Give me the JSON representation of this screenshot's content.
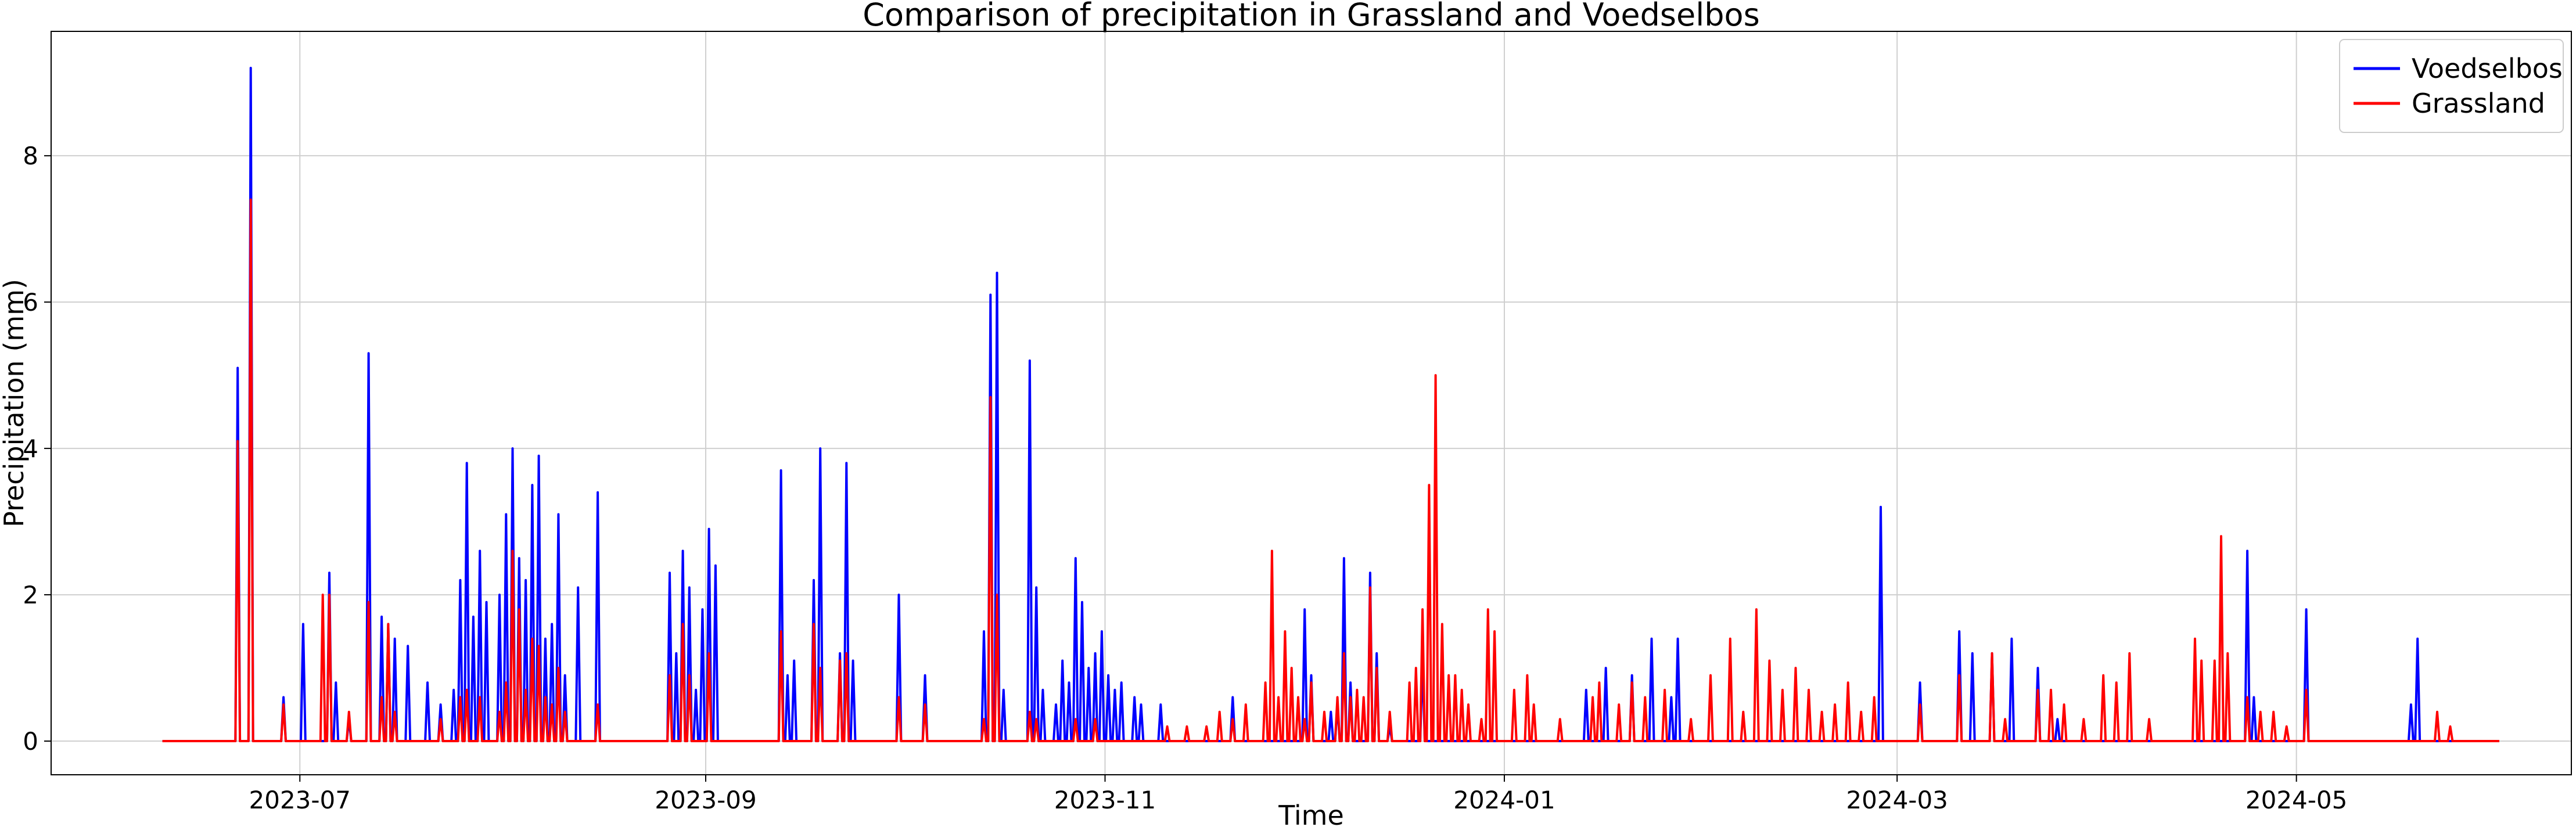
{
  "chart_data": {
    "type": "line",
    "title": "Comparison of precipitation in Grassland and Voedselbos",
    "xlabel": "Time",
    "ylabel": "Precipitation (mm)",
    "x_range": [
      "2023-05-24",
      "2024-06-12"
    ],
    "ylim": [
      -0.46,
      9.7
    ],
    "y_ticks": [
      0,
      2,
      4,
      6,
      8
    ],
    "x_ticks": [
      {
        "date": "2023-07-01",
        "label": "2023-07"
      },
      {
        "date": "2023-09-01",
        "label": "2023-09"
      },
      {
        "date": "2023-11-01",
        "label": "2023-11"
      },
      {
        "date": "2024-01-01",
        "label": "2024-01"
      },
      {
        "date": "2024-03-01",
        "label": "2024-03"
      },
      {
        "date": "2024-05-01",
        "label": "2024-05"
      }
    ],
    "grid": true,
    "legend_position": "top-right",
    "data_start": "2023-06-10",
    "data_end": "2024-06-01",
    "series": [
      {
        "name": "Voedselbos",
        "color": "#0000ff",
        "spikes": [
          [
            "2023-06-21",
            5.1
          ],
          [
            "2023-06-23",
            9.2
          ],
          [
            "2023-06-28",
            0.6
          ],
          [
            "2023-07-01",
            1.6
          ],
          [
            "2023-07-05",
            2.3
          ],
          [
            "2023-07-06",
            0.8
          ],
          [
            "2023-07-08",
            0.3
          ],
          [
            "2023-07-11",
            5.3
          ],
          [
            "2023-07-13",
            1.7
          ],
          [
            "2023-07-14",
            1.6
          ],
          [
            "2023-07-15",
            1.4
          ],
          [
            "2023-07-17",
            1.3
          ],
          [
            "2023-07-20",
            0.8
          ],
          [
            "2023-07-22",
            0.5
          ],
          [
            "2023-07-24",
            0.7
          ],
          [
            "2023-07-25",
            2.2
          ],
          [
            "2023-07-26",
            3.8
          ],
          [
            "2023-07-27",
            1.7
          ],
          [
            "2023-07-28",
            2.6
          ],
          [
            "2023-07-29",
            1.9
          ],
          [
            "2023-07-31",
            2.0
          ],
          [
            "2023-08-01",
            3.1
          ],
          [
            "2023-08-02",
            4.0
          ],
          [
            "2023-08-03",
            2.5
          ],
          [
            "2023-08-04",
            2.2
          ],
          [
            "2023-08-05",
            3.5
          ],
          [
            "2023-08-06",
            3.9
          ],
          [
            "2023-08-07",
            1.4
          ],
          [
            "2023-08-08",
            1.6
          ],
          [
            "2023-08-09",
            3.1
          ],
          [
            "2023-08-10",
            0.9
          ],
          [
            "2023-08-12",
            2.1
          ],
          [
            "2023-08-15",
            3.4
          ],
          [
            "2023-08-26",
            2.3
          ],
          [
            "2023-08-27",
            1.2
          ],
          [
            "2023-08-28",
            2.6
          ],
          [
            "2023-08-29",
            2.1
          ],
          [
            "2023-08-30",
            0.7
          ],
          [
            "2023-08-31",
            1.8
          ],
          [
            "2023-09-01",
            2.9
          ],
          [
            "2023-09-02",
            2.4
          ],
          [
            "2023-09-12",
            3.7
          ],
          [
            "2023-09-13",
            0.9
          ],
          [
            "2023-09-14",
            1.1
          ],
          [
            "2023-09-17",
            2.2
          ],
          [
            "2023-09-18",
            4.0
          ],
          [
            "2023-09-21",
            1.2
          ],
          [
            "2023-09-22",
            3.8
          ],
          [
            "2023-09-23",
            1.1
          ],
          [
            "2023-09-30",
            2.0
          ],
          [
            "2023-10-04",
            0.9
          ],
          [
            "2023-10-13",
            1.5
          ],
          [
            "2023-10-14",
            6.1
          ],
          [
            "2023-10-15",
            6.4
          ],
          [
            "2023-10-16",
            0.7
          ],
          [
            "2023-10-20",
            5.2
          ],
          [
            "2023-10-21",
            2.1
          ],
          [
            "2023-10-22",
            0.7
          ],
          [
            "2023-10-24",
            0.5
          ],
          [
            "2023-10-25",
            1.1
          ],
          [
            "2023-10-26",
            0.8
          ],
          [
            "2023-10-27",
            2.5
          ],
          [
            "2023-10-28",
            1.9
          ],
          [
            "2023-10-29",
            1.0
          ],
          [
            "2023-10-30",
            1.2
          ],
          [
            "2023-10-31",
            1.5
          ],
          [
            "2023-11-01",
            0.9
          ],
          [
            "2023-11-02",
            0.7
          ],
          [
            "2023-11-03",
            0.8
          ],
          [
            "2023-11-05",
            0.6
          ],
          [
            "2023-11-06",
            0.5
          ],
          [
            "2023-11-09",
            0.5
          ],
          [
            "2023-11-20",
            0.6
          ],
          [
            "2023-12-01",
            1.8
          ],
          [
            "2023-12-02",
            0.9
          ],
          [
            "2023-12-05",
            0.4
          ],
          [
            "2023-12-06",
            0.5
          ],
          [
            "2023-12-07",
            2.5
          ],
          [
            "2023-12-08",
            0.8
          ],
          [
            "2023-12-11",
            2.3
          ],
          [
            "2023-12-12",
            1.2
          ],
          [
            "2023-12-14",
            0.2
          ],
          [
            "2023-12-19",
            1.1
          ],
          [
            "2024-01-13",
            0.7
          ],
          [
            "2024-01-16",
            1.0
          ],
          [
            "2024-01-20",
            0.9
          ],
          [
            "2024-01-23",
            1.4
          ],
          [
            "2024-01-26",
            0.6
          ],
          [
            "2024-01-27",
            1.4
          ],
          [
            "2024-02-27",
            3.2
          ],
          [
            "2024-03-04",
            0.8
          ],
          [
            "2024-03-10",
            1.5
          ],
          [
            "2024-03-12",
            1.2
          ],
          [
            "2024-03-15",
            1.2
          ],
          [
            "2024-03-18",
            1.4
          ],
          [
            "2024-03-22",
            1.0
          ],
          [
            "2024-03-25",
            0.3
          ],
          [
            "2024-04-23",
            2.6
          ],
          [
            "2024-04-24",
            0.6
          ],
          [
            "2024-05-02",
            1.8
          ],
          [
            "2024-05-18",
            0.5
          ],
          [
            "2024-05-19",
            1.4
          ]
        ]
      },
      {
        "name": "Grassland",
        "color": "#ff0000",
        "spikes": [
          [
            "2023-06-21",
            4.1
          ],
          [
            "2023-06-23",
            7.4
          ],
          [
            "2023-06-28",
            0.5
          ],
          [
            "2023-07-04",
            2.0
          ],
          [
            "2023-07-05",
            2.0
          ],
          [
            "2023-07-08",
            0.4
          ],
          [
            "2023-07-11",
            1.9
          ],
          [
            "2023-07-13",
            0.6
          ],
          [
            "2023-07-14",
            1.6
          ],
          [
            "2023-07-15",
            0.4
          ],
          [
            "2023-07-22",
            0.3
          ],
          [
            "2023-07-25",
            0.6
          ],
          [
            "2023-07-26",
            0.7
          ],
          [
            "2023-07-28",
            0.6
          ],
          [
            "2023-07-31",
            0.4
          ],
          [
            "2023-08-01",
            0.8
          ],
          [
            "2023-08-02",
            2.6
          ],
          [
            "2023-08-03",
            1.8
          ],
          [
            "2023-08-04",
            0.7
          ],
          [
            "2023-08-05",
            1.4
          ],
          [
            "2023-08-06",
            1.3
          ],
          [
            "2023-08-07",
            0.6
          ],
          [
            "2023-08-08",
            0.5
          ],
          [
            "2023-08-09",
            1.0
          ],
          [
            "2023-08-10",
            0.4
          ],
          [
            "2023-08-15",
            0.5
          ],
          [
            "2023-08-26",
            0.9
          ],
          [
            "2023-08-28",
            1.6
          ],
          [
            "2023-08-29",
            0.9
          ],
          [
            "2023-09-01",
            1.2
          ],
          [
            "2023-09-12",
            1.5
          ],
          [
            "2023-09-17",
            1.6
          ],
          [
            "2023-09-18",
            1.0
          ],
          [
            "2023-09-21",
            1.1
          ],
          [
            "2023-09-22",
            1.2
          ],
          [
            "2023-09-30",
            0.6
          ],
          [
            "2023-10-04",
            0.5
          ],
          [
            "2023-10-13",
            0.3
          ],
          [
            "2023-10-14",
            4.7
          ],
          [
            "2023-10-15",
            2.0
          ],
          [
            "2023-10-20",
            0.4
          ],
          [
            "2023-10-21",
            0.3
          ],
          [
            "2023-10-27",
            0.3
          ],
          [
            "2023-10-30",
            0.3
          ],
          [
            "2023-11-10",
            0.2
          ],
          [
            "2023-11-13",
            0.2
          ],
          [
            "2023-11-16",
            0.2
          ],
          [
            "2023-11-18",
            0.4
          ],
          [
            "2023-11-20",
            0.3
          ],
          [
            "2023-11-22",
            0.5
          ],
          [
            "2023-11-25",
            0.8
          ],
          [
            "2023-11-26",
            2.6
          ],
          [
            "2023-11-27",
            0.6
          ],
          [
            "2023-11-28",
            1.5
          ],
          [
            "2023-11-29",
            1.0
          ],
          [
            "2023-11-30",
            0.6
          ],
          [
            "2023-12-01",
            0.3
          ],
          [
            "2023-12-02",
            0.8
          ],
          [
            "2023-12-04",
            0.4
          ],
          [
            "2023-12-06",
            0.6
          ],
          [
            "2023-12-07",
            1.2
          ],
          [
            "2023-12-08",
            0.6
          ],
          [
            "2023-12-09",
            0.7
          ],
          [
            "2023-12-10",
            0.6
          ],
          [
            "2023-12-11",
            2.1
          ],
          [
            "2023-12-12",
            1.0
          ],
          [
            "2023-12-14",
            0.4
          ],
          [
            "2023-12-17",
            0.8
          ],
          [
            "2023-12-18",
            1.0
          ],
          [
            "2023-12-19",
            1.8
          ],
          [
            "2023-12-20",
            3.5
          ],
          [
            "2023-12-21",
            5.0
          ],
          [
            "2023-12-22",
            1.6
          ],
          [
            "2023-12-23",
            0.9
          ],
          [
            "2023-12-24",
            0.9
          ],
          [
            "2023-12-25",
            0.7
          ],
          [
            "2023-12-26",
            0.5
          ],
          [
            "2023-12-28",
            0.3
          ],
          [
            "2023-12-29",
            1.8
          ],
          [
            "2023-12-30",
            1.5
          ],
          [
            "2024-01-02",
            0.7
          ],
          [
            "2024-01-04",
            0.9
          ],
          [
            "2024-01-05",
            0.5
          ],
          [
            "2024-01-09",
            0.3
          ],
          [
            "2024-01-14",
            0.6
          ],
          [
            "2024-01-15",
            0.8
          ],
          [
            "2024-01-18",
            0.5
          ],
          [
            "2024-01-20",
            0.8
          ],
          [
            "2024-01-22",
            0.6
          ],
          [
            "2024-01-25",
            0.7
          ],
          [
            "2024-01-29",
            0.3
          ],
          [
            "2024-02-01",
            0.9
          ],
          [
            "2024-02-04",
            1.4
          ],
          [
            "2024-02-06",
            0.4
          ],
          [
            "2024-02-08",
            1.8
          ],
          [
            "2024-02-10",
            1.1
          ],
          [
            "2024-02-12",
            0.7
          ],
          [
            "2024-02-14",
            1.0
          ],
          [
            "2024-02-16",
            0.7
          ],
          [
            "2024-02-18",
            0.4
          ],
          [
            "2024-02-20",
            0.5
          ],
          [
            "2024-02-22",
            0.8
          ],
          [
            "2024-02-24",
            0.4
          ],
          [
            "2024-02-26",
            0.6
          ],
          [
            "2024-03-04",
            0.5
          ],
          [
            "2024-03-10",
            0.9
          ],
          [
            "2024-03-15",
            1.2
          ],
          [
            "2024-03-17",
            0.3
          ],
          [
            "2024-03-22",
            0.7
          ],
          [
            "2024-03-24",
            0.7
          ],
          [
            "2024-03-26",
            0.5
          ],
          [
            "2024-03-29",
            0.3
          ],
          [
            "2024-04-01",
            0.9
          ],
          [
            "2024-04-03",
            0.8
          ],
          [
            "2024-04-05",
            1.2
          ],
          [
            "2024-04-08",
            0.3
          ],
          [
            "2024-04-15",
            1.4
          ],
          [
            "2024-04-16",
            1.1
          ],
          [
            "2024-04-18",
            1.1
          ],
          [
            "2024-04-19",
            2.8
          ],
          [
            "2024-04-20",
            1.2
          ],
          [
            "2024-04-23",
            0.6
          ],
          [
            "2024-04-25",
            0.4
          ],
          [
            "2024-04-27",
            0.4
          ],
          [
            "2024-04-29",
            0.2
          ],
          [
            "2024-05-02",
            0.7
          ],
          [
            "2024-05-22",
            0.4
          ],
          [
            "2024-05-24",
            0.2
          ]
        ]
      }
    ]
  }
}
